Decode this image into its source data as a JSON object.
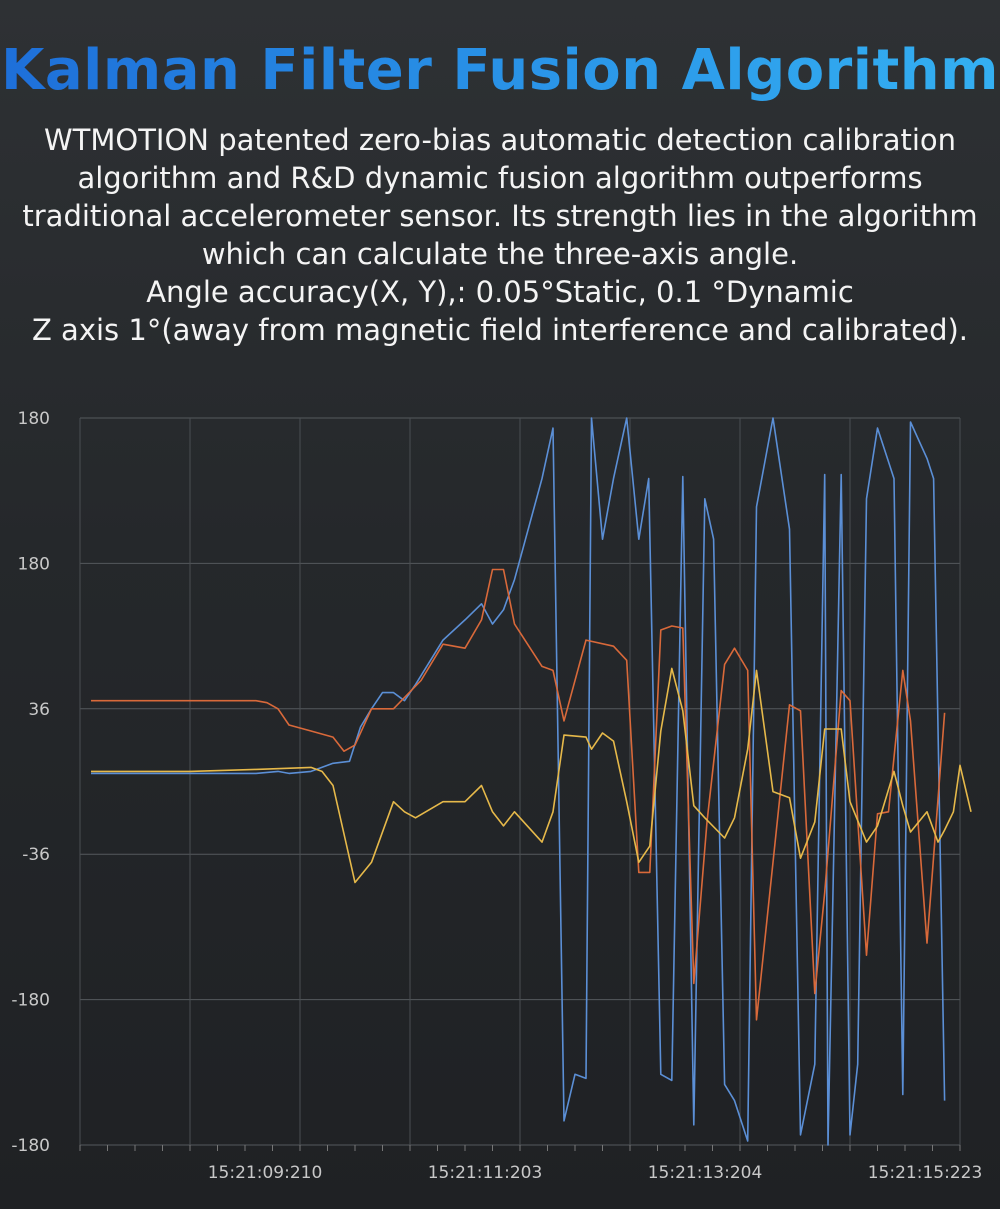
{
  "header": {
    "title": "Kalman Filter Fusion Algorithm",
    "lines": [
      "WTMOTION patented zero-bias automatic detection calibration",
      "algorithm and R&D dynamic fusion algorithm outperforms",
      "traditional accelerometer sensor. Its strength lies in the algorithm",
      "which can calculate the three-axis angle.",
      "Angle accuracy(X, Y),: 0.05°Static,  0.1 °Dynamic",
      "Z axis 1°(away from magnetic field interference and calibrated)."
    ]
  },
  "colors": {
    "blue": "#5b8fd6",
    "orange": "#d9693a",
    "yellow": "#e6b94a"
  },
  "chart_data": {
    "type": "line",
    "title": "",
    "xlabel": "",
    "ylabel": "",
    "grid": true,
    "legend": "none",
    "y_tick_labels": [
      "180",
      "180",
      "36",
      "-36",
      "-180",
      "-180"
    ],
    "x_tick_labels": [
      "15:21:09:210",
      "15:21:11:203",
      "15:21:13:204",
      "15:21:15:223"
    ],
    "x_ticks": [
      2,
      4,
      6,
      8
    ],
    "xlim": [
      0,
      8
    ],
    "ylim": [
      -180,
      180
    ],
    "series": [
      {
        "color": "#5b8fd6",
        "points": [
          [
            0.1,
            4
          ],
          [
            0.5,
            4
          ],
          [
            1,
            4
          ],
          [
            1.6,
            4
          ],
          [
            1.8,
            5
          ],
          [
            1.9,
            4
          ],
          [
            2.1,
            5
          ],
          [
            2.3,
            9
          ],
          [
            2.45,
            10
          ],
          [
            2.55,
            27
          ],
          [
            2.65,
            36
          ],
          [
            2.75,
            44
          ],
          [
            2.85,
            44
          ],
          [
            2.95,
            40
          ],
          [
            3.05,
            48
          ],
          [
            3.3,
            70
          ],
          [
            3.5,
            80
          ],
          [
            3.65,
            88
          ],
          [
            3.75,
            78
          ],
          [
            3.85,
            85
          ],
          [
            3.95,
            100
          ],
          [
            4.2,
            150
          ],
          [
            4.3,
            175
          ],
          [
            4.4,
            -168
          ],
          [
            4.5,
            -145
          ],
          [
            4.6,
            -147
          ],
          [
            4.65,
            180
          ],
          [
            4.75,
            120
          ],
          [
            4.85,
            150
          ],
          [
            4.97,
            180
          ],
          [
            5.08,
            120
          ],
          [
            5.17,
            150
          ],
          [
            5.28,
            -145
          ],
          [
            5.38,
            -148
          ],
          [
            5.48,
            151
          ],
          [
            5.58,
            -170
          ],
          [
            5.68,
            140
          ],
          [
            5.76,
            120
          ],
          [
            5.86,
            -150
          ],
          [
            5.95,
            -158
          ],
          [
            6.07,
            -178
          ],
          [
            6.15,
            136
          ],
          [
            6.3,
            180
          ],
          [
            6.45,
            125
          ],
          [
            6.55,
            -175
          ],
          [
            6.68,
            -140
          ],
          [
            6.77,
            152
          ],
          [
            6.8,
            -180
          ],
          [
            6.92,
            152
          ],
          [
            7.0,
            -175
          ],
          [
            7.07,
            -140
          ],
          [
            7.15,
            140
          ],
          [
            7.25,
            175
          ],
          [
            7.4,
            150
          ],
          [
            7.48,
            -155
          ],
          [
            7.55,
            178
          ],
          [
            7.7,
            160
          ],
          [
            7.76,
            150
          ],
          [
            7.86,
            -158
          ]
        ]
      },
      {
        "color": "#d9693a",
        "points": [
          [
            0.1,
            40
          ],
          [
            0.5,
            40
          ],
          [
            1,
            40
          ],
          [
            1.6,
            40
          ],
          [
            1.7,
            39
          ],
          [
            1.8,
            36
          ],
          [
            1.9,
            28
          ],
          [
            2.1,
            25
          ],
          [
            2.3,
            22
          ],
          [
            2.4,
            15
          ],
          [
            2.5,
            18
          ],
          [
            2.65,
            36
          ],
          [
            2.85,
            36
          ],
          [
            3.1,
            50
          ],
          [
            3.3,
            68
          ],
          [
            3.5,
            66
          ],
          [
            3.65,
            80
          ],
          [
            3.75,
            105
          ],
          [
            3.85,
            105
          ],
          [
            3.95,
            78
          ],
          [
            4.2,
            57
          ],
          [
            4.3,
            55
          ],
          [
            4.4,
            30
          ],
          [
            4.6,
            70
          ],
          [
            4.85,
            67
          ],
          [
            4.97,
            60
          ],
          [
            5.08,
            -45
          ],
          [
            5.18,
            -45
          ],
          [
            5.28,
            75
          ],
          [
            5.38,
            77
          ],
          [
            5.48,
            76
          ],
          [
            5.58,
            -100
          ],
          [
            5.7,
            -20
          ],
          [
            5.86,
            58
          ],
          [
            5.95,
            66
          ],
          [
            6.07,
            55
          ],
          [
            6.15,
            -118
          ],
          [
            6.3,
            -40
          ],
          [
            6.45,
            38
          ],
          [
            6.55,
            35
          ],
          [
            6.68,
            -105
          ],
          [
            6.77,
            -55
          ],
          [
            6.92,
            45
          ],
          [
            7.0,
            40
          ],
          [
            7.15,
            -86
          ],
          [
            7.25,
            -16
          ],
          [
            7.35,
            -15
          ],
          [
            7.48,
            55
          ],
          [
            7.55,
            30
          ],
          [
            7.7,
            -80
          ],
          [
            7.86,
            34
          ]
        ]
      },
      {
        "color": "#e6b94a",
        "points": [
          [
            0.1,
            5
          ],
          [
            0.5,
            5
          ],
          [
            1,
            5
          ],
          [
            1.6,
            6
          ],
          [
            2.1,
            7
          ],
          [
            2.2,
            5
          ],
          [
            2.3,
            -2
          ],
          [
            2.5,
            -50
          ],
          [
            2.65,
            -40
          ],
          [
            2.85,
            -10
          ],
          [
            2.95,
            -15
          ],
          [
            3.05,
            -18
          ],
          [
            3.3,
            -10
          ],
          [
            3.5,
            -10
          ],
          [
            3.65,
            -2
          ],
          [
            3.75,
            -15
          ],
          [
            3.85,
            -22
          ],
          [
            3.95,
            -15
          ],
          [
            4.2,
            -30
          ],
          [
            4.3,
            -15
          ],
          [
            4.4,
            23
          ],
          [
            4.6,
            22
          ],
          [
            4.65,
            16
          ],
          [
            4.75,
            24
          ],
          [
            4.85,
            20
          ],
          [
            4.97,
            -10
          ],
          [
            5.08,
            -40
          ],
          [
            5.18,
            -32
          ],
          [
            5.28,
            25
          ],
          [
            5.38,
            56
          ],
          [
            5.48,
            35
          ],
          [
            5.58,
            -12
          ],
          [
            5.68,
            -18
          ],
          [
            5.86,
            -28
          ],
          [
            5.95,
            -18
          ],
          [
            6.07,
            16
          ],
          [
            6.15,
            55
          ],
          [
            6.3,
            -5
          ],
          [
            6.45,
            -8
          ],
          [
            6.55,
            -38
          ],
          [
            6.68,
            -20
          ],
          [
            6.77,
            26
          ],
          [
            6.92,
            26
          ],
          [
            7.0,
            -10
          ],
          [
            7.15,
            -30
          ],
          [
            7.25,
            -22
          ],
          [
            7.4,
            5
          ],
          [
            7.48,
            -12
          ],
          [
            7.55,
            -25
          ],
          [
            7.7,
            -15
          ],
          [
            7.8,
            -30
          ],
          [
            7.86,
            -24
          ],
          [
            7.94,
            -15
          ],
          [
            8.0,
            8
          ],
          [
            8.1,
            -15
          ]
        ]
      }
    ]
  }
}
